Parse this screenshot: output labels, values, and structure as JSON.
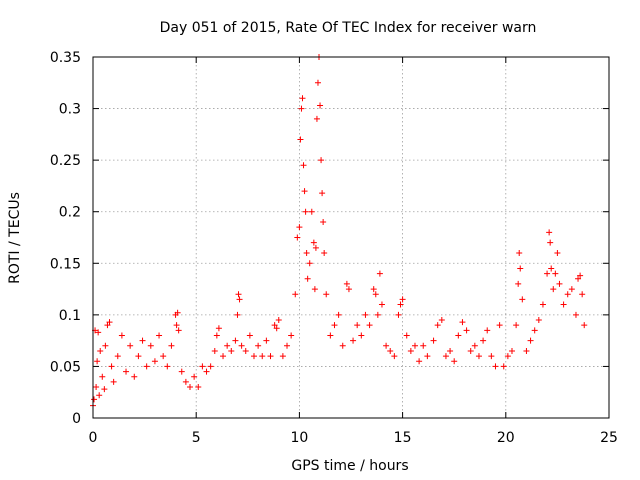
{
  "chart_data": {
    "type": "scatter",
    "title": "Day 051 of 2015, Rate Of TEC Index for receiver warn",
    "xlabel": "GPS time / hours",
    "ylabel": "ROTI / TECUs",
    "xlim": [
      0,
      25
    ],
    "ylim": [
      0,
      0.35
    ],
    "xticks": [
      0,
      5,
      10,
      15,
      20,
      25
    ],
    "xtick_labels": [
      "0",
      "5",
      "10",
      "15",
      "20",
      "25"
    ],
    "yticks": [
      0,
      0.05,
      0.1,
      0.15,
      0.2,
      0.25,
      0.3,
      0.35
    ],
    "ytick_labels": [
      "0",
      "0.05",
      "0.1",
      "0.15",
      "0.2",
      "0.25",
      "0.3",
      "0.35"
    ],
    "grid": true,
    "marker": "+",
    "color": "#ff0000",
    "series": [
      {
        "name": "ROTI",
        "points": [
          [
            0.0,
            0.012
          ],
          [
            0.05,
            0.018
          ],
          [
            0.1,
            0.085
          ],
          [
            0.15,
            0.03
          ],
          [
            0.2,
            0.055
          ],
          [
            0.25,
            0.083
          ],
          [
            0.3,
            0.022
          ],
          [
            0.35,
            0.065
          ],
          [
            0.45,
            0.04
          ],
          [
            0.55,
            0.028
          ],
          [
            0.6,
            0.07
          ],
          [
            0.7,
            0.09
          ],
          [
            0.8,
            0.093
          ],
          [
            0.9,
            0.05
          ],
          [
            1.0,
            0.035
          ],
          [
            1.2,
            0.06
          ],
          [
            1.4,
            0.08
          ],
          [
            1.6,
            0.045
          ],
          [
            1.8,
            0.07
          ],
          [
            2.0,
            0.04
          ],
          [
            2.2,
            0.06
          ],
          [
            2.4,
            0.075
          ],
          [
            2.6,
            0.05
          ],
          [
            2.8,
            0.07
          ],
          [
            3.0,
            0.055
          ],
          [
            3.2,
            0.08
          ],
          [
            3.4,
            0.06
          ],
          [
            3.6,
            0.05
          ],
          [
            3.8,
            0.07
          ],
          [
            4.0,
            0.1
          ],
          [
            4.05,
            0.09
          ],
          [
            4.1,
            0.102
          ],
          [
            4.15,
            0.085
          ],
          [
            4.3,
            0.045
          ],
          [
            4.5,
            0.035
          ],
          [
            4.7,
            0.03
          ],
          [
            4.9,
            0.04
          ],
          [
            5.1,
            0.03
          ],
          [
            5.3,
            0.05
          ],
          [
            5.5,
            0.045
          ],
          [
            5.7,
            0.05
          ],
          [
            5.9,
            0.065
          ],
          [
            6.0,
            0.08
          ],
          [
            6.1,
            0.087
          ],
          [
            6.3,
            0.06
          ],
          [
            6.5,
            0.07
          ],
          [
            6.7,
            0.065
          ],
          [
            6.9,
            0.075
          ],
          [
            7.0,
            0.1
          ],
          [
            7.05,
            0.12
          ],
          [
            7.1,
            0.115
          ],
          [
            7.2,
            0.07
          ],
          [
            7.4,
            0.065
          ],
          [
            7.6,
            0.08
          ],
          [
            7.8,
            0.06
          ],
          [
            8.0,
            0.07
          ],
          [
            8.2,
            0.06
          ],
          [
            8.4,
            0.075
          ],
          [
            8.6,
            0.06
          ],
          [
            8.8,
            0.09
          ],
          [
            8.9,
            0.087
          ],
          [
            9.0,
            0.095
          ],
          [
            9.2,
            0.06
          ],
          [
            9.4,
            0.07
          ],
          [
            9.6,
            0.08
          ],
          [
            9.8,
            0.12
          ],
          [
            9.9,
            0.175
          ],
          [
            10.0,
            0.185
          ],
          [
            10.05,
            0.27
          ],
          [
            10.1,
            0.3
          ],
          [
            10.15,
            0.31
          ],
          [
            10.2,
            0.245
          ],
          [
            10.25,
            0.22
          ],
          [
            10.3,
            0.2
          ],
          [
            10.35,
            0.16
          ],
          [
            10.4,
            0.135
          ],
          [
            10.5,
            0.15
          ],
          [
            10.6,
            0.2
          ],
          [
            10.7,
            0.17
          ],
          [
            10.75,
            0.125
          ],
          [
            10.8,
            0.165
          ],
          [
            10.85,
            0.29
          ],
          [
            10.9,
            0.325
          ],
          [
            10.95,
            0.35
          ],
          [
            11.0,
            0.303
          ],
          [
            11.05,
            0.25
          ],
          [
            11.1,
            0.218
          ],
          [
            11.15,
            0.19
          ],
          [
            11.2,
            0.16
          ],
          [
            11.3,
            0.12
          ],
          [
            11.5,
            0.08
          ],
          [
            11.7,
            0.09
          ],
          [
            11.9,
            0.1
          ],
          [
            12.1,
            0.07
          ],
          [
            12.3,
            0.13
          ],
          [
            12.4,
            0.125
          ],
          [
            12.6,
            0.075
          ],
          [
            12.8,
            0.09
          ],
          [
            13.0,
            0.08
          ],
          [
            13.2,
            0.1
          ],
          [
            13.4,
            0.09
          ],
          [
            13.6,
            0.125
          ],
          [
            13.7,
            0.12
          ],
          [
            13.8,
            0.1
          ],
          [
            13.9,
            0.14
          ],
          [
            14.0,
            0.11
          ],
          [
            14.2,
            0.07
          ],
          [
            14.4,
            0.065
          ],
          [
            14.6,
            0.06
          ],
          [
            14.8,
            0.1
          ],
          [
            14.9,
            0.11
          ],
          [
            15.0,
            0.115
          ],
          [
            15.2,
            0.08
          ],
          [
            15.4,
            0.065
          ],
          [
            15.6,
            0.07
          ],
          [
            15.8,
            0.055
          ],
          [
            16.0,
            0.07
          ],
          [
            16.2,
            0.06
          ],
          [
            16.5,
            0.075
          ],
          [
            16.7,
            0.09
          ],
          [
            16.9,
            0.095
          ],
          [
            17.1,
            0.06
          ],
          [
            17.3,
            0.065
          ],
          [
            17.5,
            0.055
          ],
          [
            17.7,
            0.08
          ],
          [
            17.9,
            0.093
          ],
          [
            18.1,
            0.085
          ],
          [
            18.3,
            0.065
          ],
          [
            18.5,
            0.07
          ],
          [
            18.7,
            0.06
          ],
          [
            18.9,
            0.075
          ],
          [
            19.1,
            0.085
          ],
          [
            19.3,
            0.06
          ],
          [
            19.5,
            0.05
          ],
          [
            19.7,
            0.09
          ],
          [
            19.9,
            0.05
          ],
          [
            20.1,
            0.06
          ],
          [
            20.3,
            0.065
          ],
          [
            20.5,
            0.09
          ],
          [
            20.6,
            0.13
          ],
          [
            20.65,
            0.16
          ],
          [
            20.7,
            0.145
          ],
          [
            20.8,
            0.115
          ],
          [
            21.0,
            0.065
          ],
          [
            21.2,
            0.075
          ],
          [
            21.4,
            0.085
          ],
          [
            21.6,
            0.095
          ],
          [
            21.8,
            0.11
          ],
          [
            22.0,
            0.14
          ],
          [
            22.1,
            0.18
          ],
          [
            22.15,
            0.17
          ],
          [
            22.2,
            0.145
          ],
          [
            22.3,
            0.125
          ],
          [
            22.4,
            0.14
          ],
          [
            22.5,
            0.16
          ],
          [
            22.6,
            0.13
          ],
          [
            22.8,
            0.11
          ],
          [
            23.0,
            0.12
          ],
          [
            23.2,
            0.125
          ],
          [
            23.4,
            0.1
          ],
          [
            23.5,
            0.135
          ],
          [
            23.6,
            0.138
          ],
          [
            23.7,
            0.12
          ],
          [
            23.8,
            0.09
          ]
        ]
      }
    ]
  }
}
